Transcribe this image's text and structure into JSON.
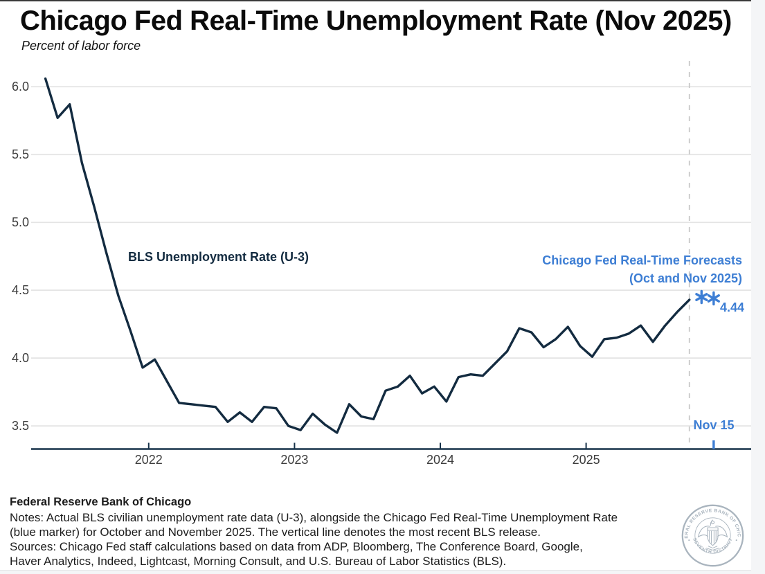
{
  "page": {
    "title": "Chicago Fed Real-Time Unemployment Rate (Nov 2025)",
    "subtitle": "Percent of labor force"
  },
  "colors": {
    "line_navy": "#132b40",
    "accent_blue": "#3d7ed4",
    "gridline": "#e4e4e4",
    "dashed_line": "#c9c9c9",
    "axis": "#16324a",
    "tick_text": "#3d3d3d",
    "seal_gray": "#a9b4be"
  },
  "chart_data": {
    "type": "line",
    "title": "Chicago Fed Real-Time Unemployment Rate (Nov 2025)",
    "ylabel": "Percent of labor force",
    "grid": "horizontal",
    "yticks": [
      3.5,
      4.0,
      4.5,
      5.0,
      5.5,
      6.0
    ],
    "ylim": [
      3.33,
      6.19
    ],
    "xticks": [
      "2022",
      "2023",
      "2024",
      "2025"
    ],
    "x_range_months": [
      "2021-04",
      "2025-11"
    ],
    "series": [
      {
        "name": "BLS Unemployment Rate (U-3)",
        "color": "#132b40",
        "frequency": "monthly",
        "start_month": "2021-04",
        "values": [
          6.06,
          5.77,
          5.87,
          5.44,
          5.12,
          4.78,
          4.46,
          4.2,
          3.93,
          3.99,
          3.83,
          3.67,
          3.66,
          3.65,
          3.64,
          3.53,
          3.6,
          3.53,
          3.64,
          3.63,
          3.5,
          3.47,
          3.59,
          3.51,
          3.45,
          3.66,
          3.57,
          3.55,
          3.76,
          3.79,
          3.87,
          3.74,
          3.79,
          3.68,
          3.86,
          3.88,
          3.87,
          3.96,
          4.05,
          4.22,
          4.19,
          4.08,
          4.14,
          4.23,
          4.09,
          4.01,
          4.14,
          4.15,
          4.18,
          4.24,
          4.12,
          4.24,
          4.34,
          4.43
        ]
      },
      {
        "name": "Chicago Fed Real-Time Forecasts (Oct and Nov 2025)",
        "color": "#3d7ed4",
        "marker": "asterisk",
        "points": [
          {
            "month": "2025-10",
            "value": 4.45
          },
          {
            "month": "2025-11",
            "value": 4.44
          }
        ]
      }
    ],
    "vline": {
      "month": "2025-09",
      "style": "dashed",
      "label": "Nov 15"
    },
    "blue_axis_tick_month": "2025-11"
  },
  "annotations": {
    "series_label": "BLS Unemployment Rate (U-3)",
    "forecast_label_line1": "Chicago Fed Real-Time Forecasts",
    "forecast_label_line2": "(Oct and Nov 2025)",
    "value_label": "4.44",
    "vline_label": "Nov 15"
  },
  "footer": {
    "org": "Federal Reserve Bank of Chicago",
    "lines": [
      "Notes: Actual BLS civilian unemployment rate data (U-3), alongside the Chicago Fed Real-Time Unemployment Rate",
      "(blue marker) for October and November 2025. The vertical line denotes the most recent BLS release.",
      "Sources: Chicago Fed staff calculations based on data from ADP, Bloomberg, The Conference Board, Google,",
      "Haver Analytics, Indeed, Lightcast, Morning Consult, and U.S. Bureau of Labor Statistics (BLS)."
    ]
  },
  "seal": {
    "top_text": "FEDERAL RESERVE BANK OF CHICAGO",
    "bottom_text": "SEVENTH DISTRICT"
  }
}
